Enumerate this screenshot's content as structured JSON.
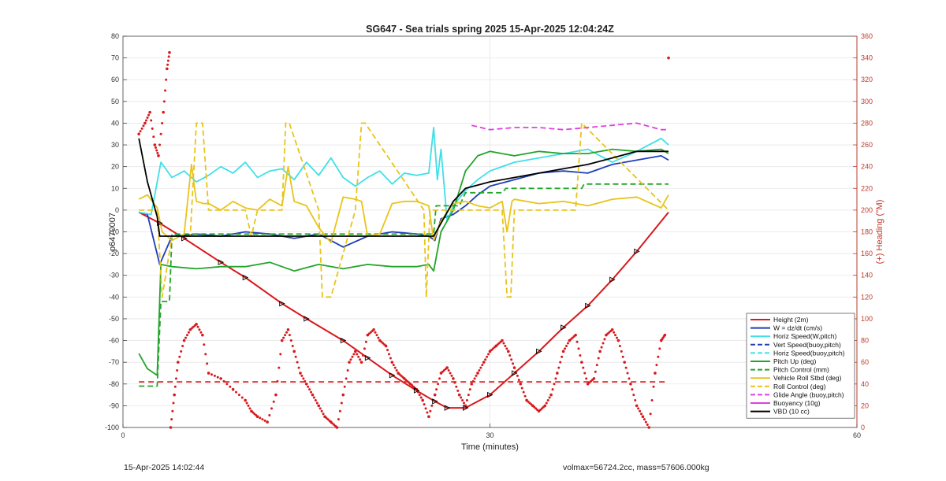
{
  "chart_data": {
    "type": "line",
    "title": "SG647 - Sea trials spring 2025 15-Apr-2025 12:04:24Z",
    "xlabel": "Time (minutes)",
    "ylabel": "p6470007",
    "ylabel_right": "(+) Heading (°M)",
    "xlim": [
      0,
      60
    ],
    "ylim": [
      -100,
      80
    ],
    "ylim_right": [
      0,
      360
    ],
    "x_ticks": [
      "0",
      "30",
      "60"
    ],
    "y_ticks": [
      "80",
      "70",
      "60",
      "50",
      "40",
      "30",
      "20",
      "10",
      "0",
      "-10",
      "-20",
      "-30",
      "-40",
      "-50",
      "-60",
      "-70",
      "-80",
      "-90",
      "-100"
    ],
    "y_ticks_right": [
      "360",
      "340",
      "320",
      "300",
      "280",
      "260",
      "240",
      "220",
      "200",
      "180",
      "160",
      "140",
      "120",
      "100",
      "80",
      "60",
      "40",
      "20",
      "0"
    ],
    "grid": true,
    "legend_position": "bottom-right",
    "series": [
      {
        "name": "Height (2m)",
        "color": "#d7191c",
        "style": "solid",
        "x": [
          1.3,
          3,
          5,
          8,
          10,
          13,
          15,
          18,
          20,
          22,
          24,
          25.5,
          26.5,
          28,
          30,
          32,
          34,
          36,
          38,
          40,
          42,
          44.6
        ],
        "y": [
          -1,
          -6,
          -13,
          -24,
          -31,
          -43,
          -50,
          -60,
          -68,
          -76,
          -83,
          -88,
          -91,
          -91,
          -85,
          -75,
          -65,
          -54,
          -44,
          -32,
          -19,
          -1
        ]
      },
      {
        "name": "W = dz/dt (cm/s)",
        "color": "#1f3fb5",
        "style": "solid",
        "x": [
          1.3,
          2,
          3,
          4,
          6,
          8,
          10,
          12,
          14,
          16,
          18,
          20,
          22,
          24,
          25,
          25.5,
          26,
          27,
          28,
          29,
          30,
          32,
          34,
          36,
          38,
          40,
          42,
          44,
          44.6
        ],
        "y": [
          -1,
          -2,
          -25,
          -12,
          -11,
          -12,
          -10,
          -11,
          -13,
          -11,
          -17,
          -12,
          -10,
          -11,
          -12,
          -14,
          -4,
          -2,
          2,
          7,
          11,
          14,
          17,
          18,
          17,
          21,
          23,
          25,
          23
        ]
      },
      {
        "name": "Horiz Speed(W,pitch)",
        "color": "#3ee0e8",
        "style": "solid",
        "x": [
          1.3,
          2.3,
          3.1,
          4,
          5,
          6,
          7,
          8,
          9,
          10,
          11,
          12,
          13,
          14,
          15,
          16,
          17,
          18,
          19,
          20,
          21,
          22,
          23,
          24,
          25,
          25.4,
          25.7,
          26,
          26.5,
          27,
          28,
          29,
          30,
          32,
          34,
          36,
          38,
          40,
          42,
          44,
          44.6
        ],
        "y": [
          -1,
          -2,
          22,
          15,
          18,
          13,
          16,
          20,
          17,
          22,
          15,
          18,
          19,
          14,
          22,
          16,
          24,
          15,
          11,
          15,
          18,
          12,
          17,
          16,
          17,
          38,
          14,
          28,
          -5,
          2,
          9,
          14,
          18,
          22,
          24,
          26,
          28,
          22,
          27,
          33,
          30
        ]
      },
      {
        "name": "Vert Speed(buoy,pitch)",
        "color": "#1f3fb5",
        "style": "dashed",
        "x": [],
        "y": []
      },
      {
        "name": "Horiz Speed(buoy,pitch)",
        "color": "#3ee0e8",
        "style": "dashed",
        "x": [],
        "y": []
      },
      {
        "name": "Pitch Up (deg)",
        "color": "#22a52a",
        "style": "solid",
        "x": [
          1.3,
          2,
          2.8,
          3.1,
          4,
          6,
          8,
          10,
          12,
          14,
          16,
          18,
          20,
          22,
          24,
          25,
          25.4,
          26,
          27,
          28,
          29,
          30,
          32,
          34,
          36,
          38,
          40,
          42,
          44,
          44.6
        ],
        "y": [
          -66,
          -73,
          -76,
          -25,
          -26,
          -27,
          -26,
          -26,
          -24,
          -28,
          -25,
          -27,
          -25,
          -26,
          -26,
          -25,
          -28,
          -10,
          0,
          18,
          25,
          27,
          25,
          27,
          26,
          26,
          28,
          27,
          28,
          26
        ]
      },
      {
        "name": "Pitch Control (mm)",
        "color": "#22a52a",
        "style": "dashed",
        "x": [
          1.3,
          2.8,
          3.1,
          3.8,
          4,
          6,
          25.4,
          25.6,
          27.5,
          28,
          31,
          31.3,
          37.5,
          37.7,
          44.6
        ],
        "y": [
          -81,
          -81,
          -42,
          -42,
          -11,
          -11,
          -11,
          2,
          2,
          8,
          8,
          10,
          10,
          12,
          12
        ]
      },
      {
        "name": "Vehicle Roll Stbd (deg)",
        "color": "#e8c41a",
        "style": "solid",
        "x": [
          1.3,
          2,
          2.8,
          3.2,
          4,
          5,
          5.6,
          6,
          6.6,
          7,
          8,
          9,
          10,
          11,
          12,
          13,
          13.5,
          14,
          15,
          16,
          17,
          18,
          19,
          19.5,
          20,
          21,
          22,
          23,
          24,
          25,
          25.4,
          26,
          27,
          28,
          29,
          30,
          31,
          31.4,
          31.8,
          32,
          34,
          36,
          38,
          40,
          42,
          44,
          44.6
        ],
        "y": [
          5,
          7,
          1,
          -10,
          -14,
          -11,
          21,
          4,
          3,
          3,
          0,
          4,
          1,
          0,
          5,
          2,
          20,
          4,
          2,
          -8,
          -15,
          6,
          5,
          4,
          -12,
          -11,
          3,
          4,
          4,
          2,
          -14,
          -5,
          3,
          4,
          2,
          1,
          4,
          -10,
          4,
          5,
          3,
          4,
          2,
          5,
          6,
          1,
          7
        ]
      },
      {
        "name": "Roll Control (deg)",
        "color": "#e8c41a",
        "style": "dashed",
        "x": [
          1.3,
          2.8,
          3.2,
          4,
          5.5,
          6,
          6.5,
          7,
          10,
          10.5,
          11,
          13,
          13.3,
          13.6,
          16,
          16.3,
          17,
          19,
          19.5,
          19.8,
          24.6,
          24.8,
          25.1,
          27,
          31,
          31.4,
          31.7,
          32,
          37,
          37.5,
          44.6
        ],
        "y": [
          0,
          0,
          -40,
          -12,
          -12,
          40,
          40,
          0,
          0,
          -12,
          0,
          0,
          40,
          40,
          0,
          -40,
          -40,
          0,
          40,
          40,
          0,
          -40,
          0,
          0,
          0,
          -40,
          -40,
          0,
          0,
          40,
          0
        ]
      },
      {
        "name": "Glide Angle (buoy,pitch)",
        "color": "#e040e0",
        "style": "dashed",
        "x": [
          28.5,
          30,
          32,
          34,
          36,
          38,
          40,
          42,
          44,
          44.6
        ],
        "y": [
          39,
          37,
          38,
          38,
          37,
          38,
          39,
          40,
          37,
          37
        ]
      },
      {
        "name": "Buoyancy (10g)",
        "color": "#e040e0",
        "style": "solid",
        "x": [],
        "y": []
      },
      {
        "name": "VBD (10 cc)",
        "color": "#000000",
        "style": "solid",
        "x": [
          1.3,
          2,
          2.8,
          3,
          25.4,
          27,
          28,
          30,
          32,
          34,
          36,
          38,
          40,
          42,
          44,
          44.6
        ],
        "y": [
          33,
          13,
          -3,
          -12,
          -12,
          4,
          10,
          13,
          15,
          17,
          19,
          21,
          24,
          27,
          27,
          27
        ]
      }
    ],
    "heading_series": {
      "name": "(+) Heading",
      "color": "#d7191c",
      "axis": "right",
      "x": [
        1.3,
        1.8,
        2.2,
        2.6,
        2.9,
        3.3,
        3.6,
        3.8,
        3.9,
        4.2,
        4.5,
        5,
        5.5,
        6,
        6.5,
        7,
        8,
        9,
        10,
        10.5,
        11,
        11.8,
        12.5,
        13,
        13.5,
        14,
        14.5,
        15,
        15.5,
        16,
        16.5,
        17,
        17.5,
        18,
        18.5,
        19,
        19.5,
        20,
        20.5,
        21,
        21.5,
        22,
        22.5,
        23,
        23.5,
        24,
        24.5,
        25,
        25.5,
        26,
        26.5,
        27,
        27.5,
        28,
        28.5,
        29,
        29.5,
        30,
        30.5,
        31,
        31.5,
        32,
        32.5,
        33,
        33.5,
        34,
        34.5,
        35,
        35.5,
        36,
        36.5,
        37,
        37.5,
        38,
        38.5,
        39,
        39.5,
        40,
        40.5,
        41,
        41.5,
        42,
        42.5,
        43,
        43.5,
        44,
        44.3,
        44.6
      ],
      "y": [
        270,
        280,
        290,
        260,
        250,
        290,
        330,
        345,
        0,
        30,
        60,
        80,
        90,
        95,
        85,
        50,
        45,
        35,
        25,
        15,
        10,
        5,
        30,
        80,
        90,
        70,
        50,
        40,
        30,
        20,
        10,
        5,
        0,
        30,
        60,
        70,
        60,
        85,
        90,
        80,
        75,
        60,
        50,
        45,
        40,
        35,
        25,
        10,
        30,
        50,
        55,
        45,
        30,
        20,
        40,
        50,
        60,
        70,
        75,
        80,
        70,
        55,
        40,
        25,
        20,
        15,
        20,
        30,
        50,
        70,
        80,
        85,
        60,
        40,
        45,
        70,
        85,
        90,
        80,
        60,
        40,
        20,
        10,
        0,
        50,
        80,
        85,
        340
      ]
    }
  }
}
